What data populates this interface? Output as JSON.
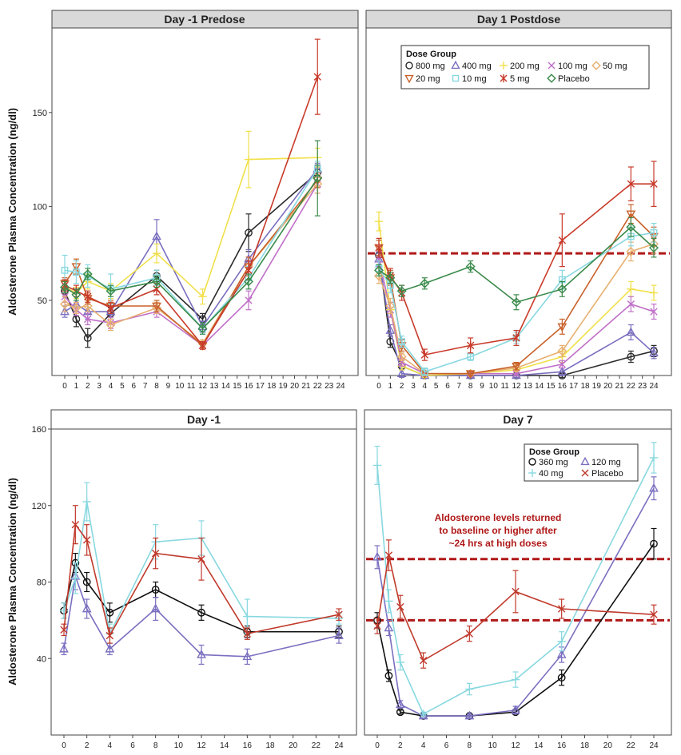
{
  "chart_data": [
    {
      "type": "line",
      "title": "Day -1 Predose",
      "ylabel": "Aldosterone Plasma Concentration (ng/dl)",
      "xlabel": "",
      "xlim": [
        -1,
        25
      ],
      "ylim": [
        10,
        195
      ],
      "xticks": [
        0,
        1,
        2,
        3,
        4,
        5,
        6,
        7,
        8,
        9,
        10,
        11,
        12,
        13,
        14,
        15,
        16,
        17,
        18,
        19,
        20,
        21,
        22,
        23,
        24
      ],
      "yticks": [
        50,
        100,
        150
      ],
      "series": [
        {
          "name": "800 mg",
          "color": "#2a2a2a",
          "marker": "circle",
          "x": [
            0,
            1,
            2,
            4,
            8,
            12,
            16,
            22
          ],
          "y": [
            55,
            40,
            30,
            43,
            63,
            40,
            86,
            118
          ],
          "err": [
            3,
            4,
            5,
            3,
            3,
            3,
            10,
            4
          ]
        },
        {
          "name": "400 mg",
          "color": "#7a6fc0",
          "marker": "triangle",
          "x": [
            0,
            1,
            2,
            4,
            8,
            12,
            16,
            22
          ],
          "y": [
            44,
            48,
            44,
            44,
            84,
            36,
            72,
            120
          ],
          "err": [
            3,
            4,
            4,
            3,
            9,
            3,
            5,
            3
          ]
        },
        {
          "name": "200 mg",
          "color": "#f1e04a",
          "marker": "plus",
          "x": [
            0,
            1,
            2,
            4,
            8,
            12,
            16,
            22
          ],
          "y": [
            57,
            54,
            60,
            55,
            75,
            52,
            125,
            126
          ],
          "err": [
            3,
            3,
            4,
            4,
            5,
            4,
            15,
            5
          ]
        },
        {
          "name": "100 mg",
          "color": "#c070c8",
          "marker": "x",
          "x": [
            0,
            1,
            2,
            4,
            8,
            12,
            16,
            22
          ],
          "y": [
            52,
            45,
            40,
            38,
            44,
            26,
            50,
            112
          ],
          "err": [
            3,
            3,
            3,
            3,
            3,
            2,
            5,
            5
          ]
        },
        {
          "name": "50 mg",
          "color": "#e8b070",
          "marker": "diamond",
          "x": [
            0,
            1,
            2,
            4,
            8,
            12,
            16,
            22
          ],
          "y": [
            48,
            46,
            47,
            37,
            46,
            27,
            68,
            112
          ],
          "err": [
            4,
            3,
            3,
            3,
            3,
            2,
            5,
            5
          ]
        },
        {
          "name": "20 mg",
          "color": "#c8602a",
          "marker": "triangle-down",
          "x": [
            0,
            1,
            2,
            4,
            8,
            12,
            16,
            22
          ],
          "y": [
            59,
            68,
            51,
            47,
            47,
            26,
            68,
            114
          ],
          "err": [
            3,
            4,
            3,
            3,
            3,
            2,
            5,
            4
          ]
        },
        {
          "name": "10 mg",
          "color": "#88d8e0",
          "marker": "square",
          "x": [
            0,
            1,
            2,
            4,
            8,
            12,
            16,
            22
          ],
          "y": [
            66,
            65,
            63,
            56,
            62,
            35,
            62,
            120
          ],
          "err": [
            8,
            6,
            6,
            8,
            4,
            3,
            6,
            4
          ]
        },
        {
          "name": "5 mg",
          "color": "#c83a2a",
          "marker": "star",
          "x": [
            0,
            1,
            2,
            4,
            8,
            12,
            16,
            22
          ],
          "y": [
            58,
            55,
            52,
            46,
            56,
            26,
            66,
            169
          ],
          "err": [
            3,
            3,
            3,
            3,
            3,
            2,
            5,
            20
          ]
        },
        {
          "name": "Placebo",
          "color": "#3a8a4a",
          "marker": "diamond",
          "x": [
            0,
            1,
            2,
            4,
            8,
            12,
            16,
            22
          ],
          "y": [
            57,
            53,
            64,
            55,
            60,
            35,
            60,
            115
          ],
          "err": [
            3,
            3,
            3,
            3,
            3,
            3,
            4,
            20
          ]
        }
      ]
    },
    {
      "type": "line",
      "title": "Day 1 Postdose",
      "xlim": [
        -1,
        25
      ],
      "ylim": [
        10,
        195
      ],
      "xticks": [
        0,
        1,
        2,
        3,
        4,
        5,
        6,
        7,
        8,
        9,
        10,
        11,
        12,
        13,
        14,
        15,
        16,
        17,
        18,
        19,
        20,
        21,
        22,
        23,
        24
      ],
      "yticks": [
        50,
        100,
        150
      ],
      "legend": {
        "title": "Dose Group",
        "position": "top"
      },
      "reference_lines": [
        75
      ],
      "series": [
        {
          "name": "800 mg",
          "color": "#2a2a2a",
          "marker": "circle",
          "x": [
            0,
            1,
            2,
            4,
            8,
            12,
            16,
            22,
            24
          ],
          "y": [
            74,
            28,
            15,
            10,
            10,
            10,
            10,
            20,
            23
          ],
          "err": [
            3,
            3,
            2,
            1,
            1,
            1,
            1,
            3,
            3
          ]
        },
        {
          "name": "400 mg",
          "color": "#7a6fc0",
          "marker": "triangle",
          "x": [
            0,
            1,
            2,
            4,
            8,
            12,
            16,
            22,
            24
          ],
          "y": [
            72,
            34,
            11,
            10,
            10,
            10,
            12,
            33,
            22
          ],
          "err": [
            3,
            3,
            2,
            1,
            1,
            1,
            2,
            4,
            3
          ]
        },
        {
          "name": "200 mg",
          "color": "#f1e04a",
          "marker": "plus",
          "x": [
            0,
            1,
            2,
            4,
            8,
            12,
            16,
            22,
            24
          ],
          "y": [
            92,
            45,
            15,
            10,
            11,
            13,
            20,
            56,
            54
          ],
          "err": [
            5,
            4,
            2,
            1,
            1,
            1,
            3,
            4,
            4
          ]
        },
        {
          "name": "100 mg",
          "color": "#c070c8",
          "marker": "x",
          "x": [
            0,
            1,
            2,
            4,
            8,
            12,
            16,
            22,
            24
          ],
          "y": [
            72,
            45,
            17,
            11,
            11,
            11,
            16,
            48,
            44
          ],
          "err": [
            4,
            4,
            2,
            1,
            1,
            1,
            2,
            4,
            4
          ]
        },
        {
          "name": "50 mg",
          "color": "#e8b070",
          "marker": "diamond",
          "x": [
            0,
            1,
            2,
            4,
            8,
            12,
            16,
            22,
            24
          ],
          "y": [
            63,
            47,
            20,
            11,
            11,
            14,
            23,
            76,
            80
          ],
          "err": [
            4,
            4,
            2,
            1,
            1,
            2,
            3,
            5,
            5
          ]
        },
        {
          "name": "20 mg",
          "color": "#c8602a",
          "marker": "triangle-down",
          "x": [
            0,
            1,
            2,
            4,
            8,
            12,
            16,
            22,
            24
          ],
          "y": [
            78,
            62,
            26,
            11,
            11,
            15,
            36,
            96,
            84
          ],
          "err": [
            4,
            4,
            3,
            1,
            1,
            2,
            4,
            5,
            5
          ]
        },
        {
          "name": "10 mg",
          "color": "#88d8e0",
          "marker": "square",
          "x": [
            0,
            1,
            2,
            4,
            8,
            12,
            16,
            22,
            24
          ],
          "y": [
            67,
            58,
            28,
            12,
            20,
            30,
            61,
            84,
            86
          ],
          "err": [
            4,
            4,
            3,
            2,
            2,
            3,
            5,
            5,
            5
          ]
        },
        {
          "name": "5 mg",
          "color": "#c83a2a",
          "marker": "star",
          "x": [
            0,
            1,
            2,
            4,
            8,
            12,
            16,
            22,
            24
          ],
          "y": [
            78,
            63,
            54,
            21,
            26,
            30,
            82,
            112,
            112
          ],
          "err": [
            5,
            4,
            4,
            3,
            4,
            4,
            14,
            9,
            12
          ]
        },
        {
          "name": "Placebo",
          "color": "#3a8a4a",
          "marker": "diamond",
          "x": [
            0,
            1,
            2,
            4,
            8,
            12,
            16,
            22,
            24
          ],
          "y": [
            66,
            62,
            55,
            59,
            68,
            49,
            56,
            89,
            78
          ],
          "err": [
            3,
            3,
            3,
            3,
            3,
            4,
            4,
            5,
            5
          ]
        }
      ]
    },
    {
      "type": "line",
      "title": "Day -1",
      "ylabel": "Aldosterone Plasma Concentration (ng/dl)",
      "xlim": [
        -1,
        25
      ],
      "ylim": [
        0,
        160
      ],
      "xticks": [
        0,
        2,
        4,
        6,
        8,
        10,
        12,
        14,
        16,
        18,
        20,
        22,
        24
      ],
      "yticks": [
        40,
        80,
        120,
        160
      ],
      "series": [
        {
          "name": "360 mg",
          "color": "#111111",
          "marker": "circle",
          "x": [
            0,
            1,
            2,
            4,
            8,
            12,
            16,
            24
          ],
          "y": [
            65,
            90,
            80,
            64,
            76,
            64,
            54,
            54
          ],
          "err": [
            4,
            5,
            5,
            5,
            4,
            4,
            3,
            3
          ]
        },
        {
          "name": "120 mg",
          "color": "#7a6fc0",
          "marker": "triangle",
          "x": [
            0,
            1,
            2,
            4,
            8,
            12,
            16,
            24
          ],
          "y": [
            45,
            83,
            66,
            45,
            66,
            42,
            41,
            52
          ],
          "err": [
            3,
            7,
            5,
            3,
            6,
            5,
            4,
            4
          ]
        },
        {
          "name": "40 mg",
          "color": "#88d8e0",
          "marker": "plus",
          "x": [
            0,
            1,
            2,
            4,
            8,
            12,
            16,
            24
          ],
          "y": [
            65,
            82,
            122,
            53,
            101,
            103,
            62,
            61
          ],
          "err": [
            4,
            8,
            10,
            5,
            9,
            9,
            9,
            3
          ]
        },
        {
          "name": "Placebo",
          "color": "#c0392b",
          "marker": "x",
          "x": [
            0,
            1,
            2,
            4,
            8,
            12,
            16,
            24
          ],
          "y": [
            55,
            110,
            102,
            52,
            95,
            92,
            53,
            63
          ],
          "err": [
            3,
            10,
            8,
            4,
            8,
            11,
            3,
            3
          ]
        }
      ]
    },
    {
      "type": "line",
      "title": "Day 7",
      "xlim": [
        -1,
        25
      ],
      "ylim": [
        0,
        160
      ],
      "xticks": [
        0,
        2,
        4,
        6,
        8,
        10,
        12,
        14,
        16,
        18,
        20,
        22,
        24
      ],
      "yticks": [
        40,
        80,
        120,
        160
      ],
      "legend": {
        "title": "Dose Group",
        "position": "top-right"
      },
      "reference_lines": [
        92,
        60
      ],
      "annotation": "Aldosterone levels returned to baseline or higher after ~24 hrs at high doses",
      "annotation_lines": [
        "Aldosterone levels returned",
        "to baseline or higher after",
        "~24 hrs at high doses"
      ],
      "series": [
        {
          "name": "360 mg",
          "color": "#111111",
          "marker": "circle",
          "x": [
            0,
            1,
            2,
            4,
            8,
            12,
            16,
            24
          ],
          "y": [
            60,
            31,
            12,
            10,
            10,
            12,
            30,
            100
          ],
          "err": [
            4,
            3,
            1,
            1,
            1,
            1,
            4,
            8
          ]
        },
        {
          "name": "120 mg",
          "color": "#7a6fc0",
          "marker": "triangle",
          "x": [
            0,
            1,
            2,
            4,
            8,
            12,
            16,
            24
          ],
          "y": [
            93,
            56,
            16,
            10,
            10,
            13,
            42,
            129
          ],
          "err": [
            6,
            4,
            2,
            1,
            1,
            2,
            4,
            6
          ]
        },
        {
          "name": "40 mg",
          "color": "#88d8e0",
          "marker": "plus",
          "x": [
            0,
            1,
            2,
            4,
            8,
            12,
            16,
            24
          ],
          "y": [
            141,
            70,
            38,
            11,
            24,
            29,
            49,
            145
          ],
          "err": [
            10,
            6,
            4,
            1,
            3,
            4,
            5,
            8
          ]
        },
        {
          "name": "Placebo",
          "color": "#c0392b",
          "marker": "x",
          "x": [
            0,
            1,
            2,
            4,
            8,
            12,
            16,
            24
          ],
          "y": [
            57,
            94,
            67,
            39,
            53,
            75,
            66,
            63
          ],
          "err": [
            4,
            8,
            6,
            4,
            4,
            11,
            5,
            5
          ]
        }
      ]
    }
  ]
}
